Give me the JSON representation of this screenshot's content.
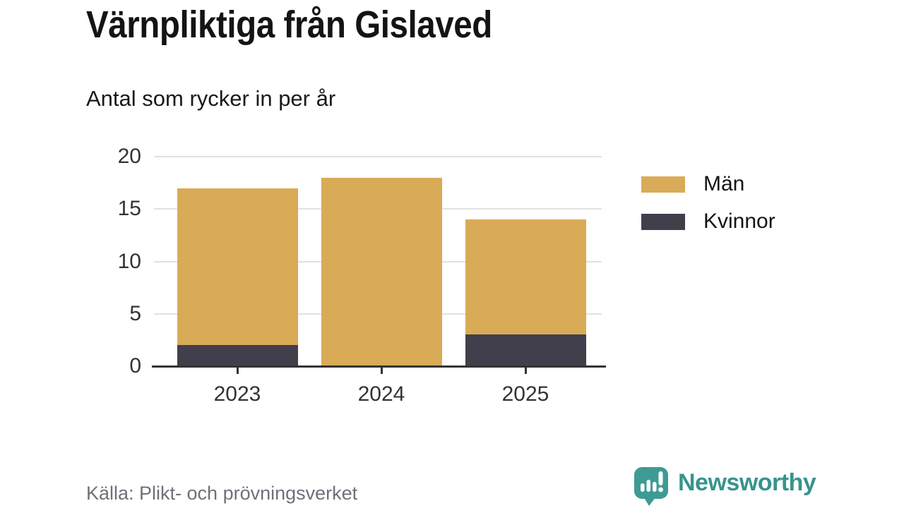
{
  "header": {
    "title": "Värnpliktiga från Gislaved",
    "subtitle": "Antal som rycker in per år"
  },
  "chart_data": {
    "type": "bar",
    "stacked": true,
    "title": "Värnpliktiga från Gislaved",
    "subtitle": "Antal som rycker in per år",
    "categories": [
      "2023",
      "2024",
      "2025"
    ],
    "series": [
      {
        "name": "Män",
        "color": "#d9ab57",
        "values": [
          15,
          18,
          11
        ]
      },
      {
        "name": "Kvinnor",
        "color": "#413f4c",
        "values": [
          2,
          0,
          3
        ]
      }
    ],
    "stack_order_bottom_to_top": [
      "Kvinnor",
      "Män"
    ],
    "totals": [
      17,
      18,
      14
    ],
    "ylim": [
      0,
      20
    ],
    "yticks": [
      0,
      5,
      10,
      15,
      20
    ],
    "grid": "horizontal",
    "legend_position": "right"
  },
  "footer": {
    "source": "Källa: Plikt- och prövningsverket",
    "brand": "Newsworthy"
  },
  "colors": {
    "background": "#ffffff",
    "grid": "#e2e2e2",
    "axis": "#333333",
    "tick_label": "#333333",
    "source_text": "#70707a",
    "brand_teal": "#36948c",
    "bubble_teal": "#3d9b94"
  }
}
